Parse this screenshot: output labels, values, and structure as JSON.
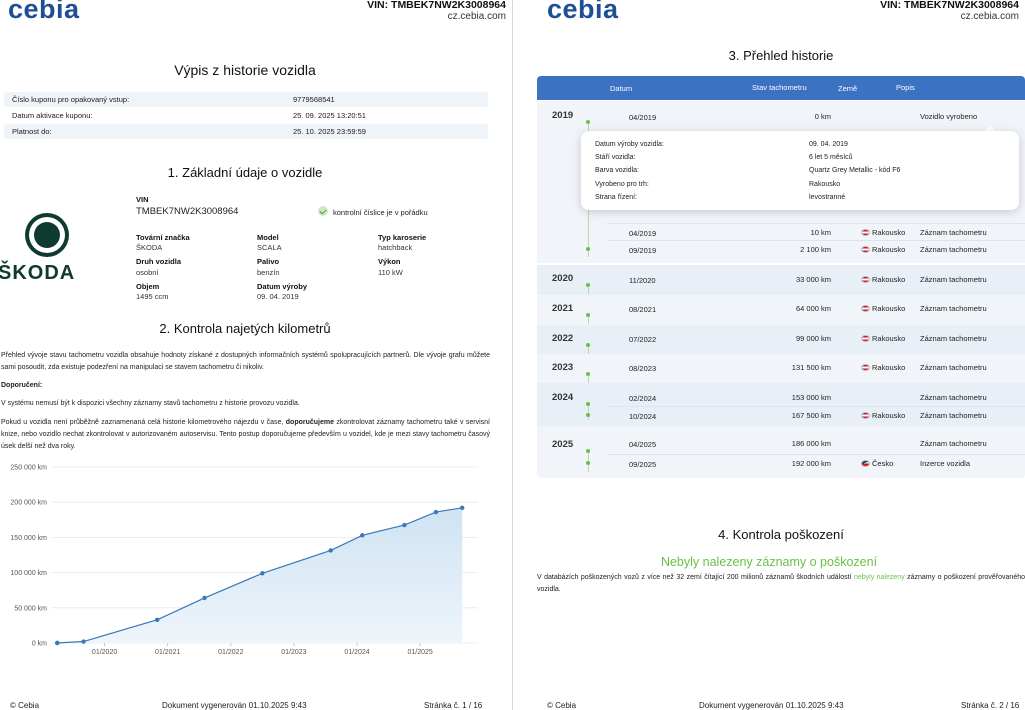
{
  "header": {
    "logo": "cebia",
    "vin_title": "VIN: TMBEK7NW2K3008964",
    "site": "cz.cebia.com"
  },
  "page1": {
    "title": "Výpis z historie vozidla",
    "coupon": [
      {
        "label": "Číslo kuponu pro opakovaný vstup:",
        "value": "9779568541"
      },
      {
        "label": "Datum aktivace kuponu:",
        "value": "25. 09. 2025 13:20:51"
      },
      {
        "label": "Platnost do:",
        "value": "25. 10. 2025 23:59:59"
      }
    ],
    "section1_title": "1. Základní údaje o vozidle",
    "brand_word": "ŠKODA",
    "vin_label": "VIN",
    "vin_value": "TMBEK7NW2K3008964",
    "checksum_text": "kontrolní číslice je v pořádku",
    "fields": {
      "make_label": "Tovární značka",
      "make_value": "ŠKODA",
      "model_label": "Model",
      "model_value": "SCALA",
      "body_label": "Typ karoserie",
      "body_value": "hatchback",
      "kind_label": "Druh vozidla",
      "kind_value": "osobní",
      "fuel_label": "Palivo",
      "fuel_value": "benzín",
      "power_label": "Výkon",
      "power_value": "110 kW",
      "volume_label": "Objem",
      "volume_value": "1495 ccm",
      "made_label": "Datum výroby",
      "made_value": "09. 04. 2019"
    },
    "section2_title": "2. Kontrola najetých kilometrů",
    "para1": "Přehled vývoje stavu tachometru vozidla obsahuje hodnoty získané z dostupných informačních systémů spolupracujících partnerů. Dle vývoje grafu můžete sami posoudit, zda existuje podezření na manipulaci se stavem tachometru či nikoliv.",
    "recommend_label": "Doporučení:",
    "para2": "V systému nemusí být k dispozici všechny záznamy stavů tachometru z historie provozu vozidla.",
    "para3_a": "Pokud u vozidla není průběžně zaznamenaná celá historie kilometrového nájezdu v čase, ",
    "para3_b": "doporučujeme",
    "para3_c": " zkontrolovat záznamy tachometru také v servisní knize, nebo vozidlo nechat zkontrolovat v autorizovaném autoservisu. Tento postup doporučujeme především u vozidel, kde je mezi stavy tachometru časový úsek delší než dva roky.",
    "footer_left": "© Cebia",
    "footer_mid": "Dokument vygenerován 01.10.2025 9:43",
    "footer_right": "Stránka č. 1 / 16"
  },
  "chart_data": {
    "type": "area",
    "title": "",
    "xlabel": "",
    "ylabel": "",
    "y_ticks": [
      "250 000 km",
      "200 000 km",
      "150 000 km",
      "100 000 km",
      "50 000 km",
      "0 km"
    ],
    "y_tick_values": [
      250000,
      200000,
      150000,
      100000,
      50000,
      0
    ],
    "x_ticks": [
      "01/2020",
      "01/2021",
      "01/2022",
      "01/2023",
      "01/2024",
      "01/2025"
    ],
    "x_tick_values": [
      "2020-01",
      "2021-01",
      "2022-01",
      "2023-01",
      "2024-01",
      "2025-01"
    ],
    "ylim": [
      0,
      250000
    ],
    "xlim": [
      "2019-03",
      "2025-12"
    ],
    "grid": true,
    "color": "#3b78b8",
    "points": [
      {
        "x": "2019-04",
        "y": 0
      },
      {
        "x": "2019-04",
        "y": 10
      },
      {
        "x": "2019-09",
        "y": 2100
      },
      {
        "x": "2020-11",
        "y": 33000
      },
      {
        "x": "2021-08",
        "y": 64000
      },
      {
        "x": "2022-07",
        "y": 99000
      },
      {
        "x": "2023-08",
        "y": 131500
      },
      {
        "x": "2024-02",
        "y": 153000
      },
      {
        "x": "2024-10",
        "y": 167500
      },
      {
        "x": "2025-04",
        "y": 186000
      },
      {
        "x": "2025-09",
        "y": 192000
      }
    ]
  },
  "page2": {
    "section3_title": "3. Přehled historie",
    "table_headers": {
      "date": "Datum",
      "odo": "Stav tachometru",
      "country": "Země",
      "desc": "Popis"
    },
    "years": [
      {
        "year": "2019",
        "rows": [
          {
            "date": "04/2019",
            "km": "0 km",
            "country": "",
            "desc": "Vozidlo vyrobeno"
          },
          {
            "date": "04/2019",
            "km": "10 km",
            "country": "Rakousko",
            "desc": "Záznam tachometru"
          },
          {
            "date": "09/2019",
            "km": "2 100 km",
            "country": "Rakousko",
            "desc": "Záznam tachometru"
          }
        ]
      },
      {
        "year": "2020",
        "rows": [
          {
            "date": "11/2020",
            "km": "33 000 km",
            "country": "Rakousko",
            "desc": "Záznam tachometru"
          }
        ]
      },
      {
        "year": "2021",
        "rows": [
          {
            "date": "08/2021",
            "km": "64 000 km",
            "country": "Rakousko",
            "desc": "Záznam tachometru"
          }
        ]
      },
      {
        "year": "2022",
        "rows": [
          {
            "date": "07/2022",
            "km": "99 000 km",
            "country": "Rakousko",
            "desc": "Záznam tachometru"
          }
        ]
      },
      {
        "year": "2023",
        "rows": [
          {
            "date": "08/2023",
            "km": "131 500 km",
            "country": "Rakousko",
            "desc": "Záznam tachometru"
          }
        ]
      },
      {
        "year": "2024",
        "rows": [
          {
            "date": "02/2024",
            "km": "153 000 km",
            "country": "",
            "desc": "Záznam tachometru"
          },
          {
            "date": "10/2024",
            "km": "167 500 km",
            "country": "Rakousko",
            "desc": "Záznam tachometru"
          }
        ]
      },
      {
        "year": "2025",
        "rows": [
          {
            "date": "04/2025",
            "km": "186 000 km",
            "country": "",
            "desc": "Záznam tachometru"
          },
          {
            "date": "09/2025",
            "km": "192 000 km",
            "country": "Česko",
            "desc": "Inzerce vozidla"
          }
        ]
      }
    ],
    "popup": [
      {
        "label": "Datum výroby vozidla:",
        "value": "09. 04. 2019"
      },
      {
        "label": "Stáří vozidla:",
        "value": "6 let 5 měsíců"
      },
      {
        "label": "Barva vozidla:",
        "value": "Quartz Grey Metallic - kód F6"
      },
      {
        "label": "Vyrobeno pro trh:",
        "value": "Rakousko"
      },
      {
        "label": "Strana řízení:",
        "value": "levostranné"
      }
    ],
    "section4_title": "4. Kontrola poškození",
    "no_damage_title": "Nebyly nalezeny záznamy o poškození",
    "dmg_a": "V databázích poškozených vozů z více než 32 zemí čítající 200 milionů záznamů škodních událostí ",
    "dmg_b": "nebyly nalezeny",
    "dmg_c": " záznamy o poškození prověřovaného vozidla.",
    "footer_left": "© Cebia",
    "footer_mid": "Dokument vygenerován 01.10.2025 9:43",
    "footer_right": "Stránka č. 2 / 16"
  },
  "colors": {
    "brand": "#1e4f93",
    "accent_green": "#6cc04a",
    "table_head": "#3b72c1",
    "chart_line": "#3b78b8"
  }
}
